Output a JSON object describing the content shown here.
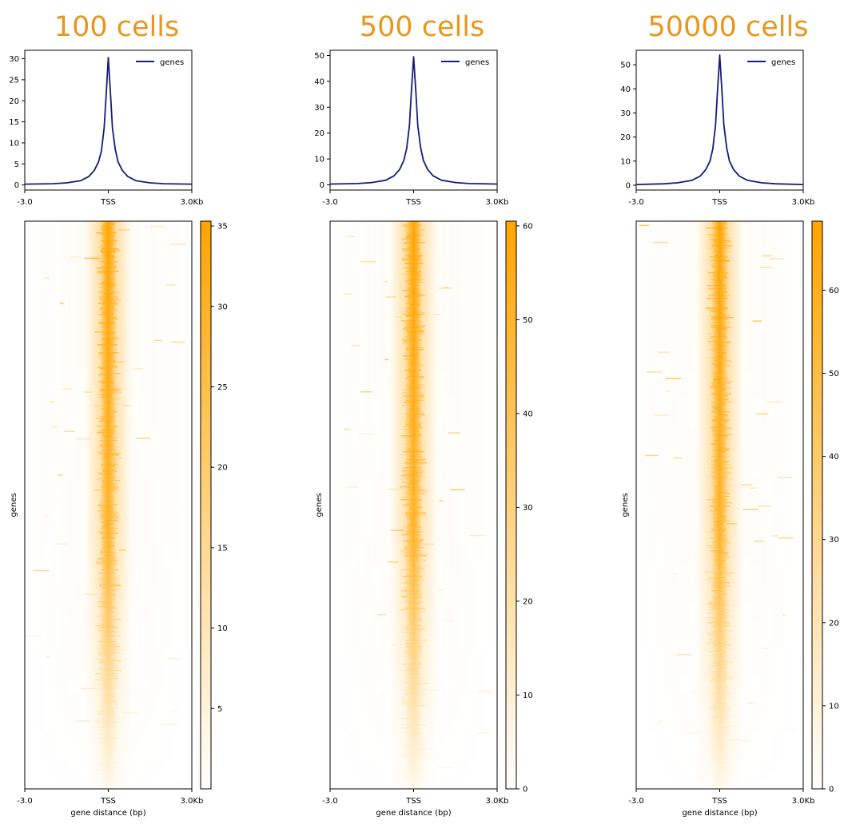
{
  "colors": {
    "accent": "#E8961E",
    "line": "#1a1a7e",
    "heat_high": "#FFA500"
  },
  "chart_data": [
    {
      "type": "line",
      "title": "100 cells",
      "profile": {
        "x_ticks": [
          "-3.0",
          "TSS",
          "3.0Kb"
        ],
        "y_ticks": [
          0,
          5,
          10,
          15,
          20,
          25,
          30
        ],
        "ylim": [
          -1.2,
          32
        ],
        "legend": "genes",
        "legend_position": "top-right",
        "x": [
          -3.0,
          -2.0,
          -1.5,
          -1.0,
          -0.7,
          -0.5,
          -0.35,
          -0.25,
          -0.15,
          -0.08,
          0.0,
          0.08,
          0.15,
          0.25,
          0.35,
          0.5,
          0.7,
          1.0,
          1.5,
          2.0,
          3.0
        ],
        "y": [
          0.2,
          0.3,
          0.5,
          1.0,
          2.0,
          3.5,
          5.5,
          8.0,
          13.5,
          21.0,
          30.3,
          21.5,
          13.5,
          8.5,
          5.5,
          3.5,
          2.0,
          1.0,
          0.5,
          0.3,
          0.2
        ]
      },
      "heatmap": {
        "ylabel": "genes",
        "xlabel": "gene distance (bp)",
        "x_ticks": [
          "-3.0",
          "TSS",
          "3.0Kb"
        ],
        "colorbar_ticks": [
          5,
          10,
          15,
          20,
          25,
          30,
          35
        ],
        "colorbar_range": [
          0,
          35.3
        ]
      }
    },
    {
      "type": "line",
      "title": "500 cells",
      "profile": {
        "x_ticks": [
          "-3.0",
          "TSS",
          "3.0Kb"
        ],
        "y_ticks": [
          0,
          10,
          20,
          30,
          40,
          50
        ],
        "ylim": [
          -2,
          52
        ],
        "legend": "genes",
        "legend_position": "top-right",
        "x": [
          -3.0,
          -2.0,
          -1.5,
          -1.0,
          -0.7,
          -0.5,
          -0.35,
          -0.25,
          -0.15,
          -0.08,
          0.0,
          0.08,
          0.15,
          0.25,
          0.35,
          0.5,
          0.7,
          1.0,
          1.5,
          2.0,
          3.0
        ],
        "y": [
          0.3,
          0.5,
          0.9,
          1.8,
          3.5,
          6.0,
          9.5,
          14.0,
          23.0,
          36.0,
          49.5,
          36.0,
          23.0,
          14.5,
          9.5,
          6.0,
          3.5,
          1.8,
          0.9,
          0.5,
          0.3
        ]
      },
      "heatmap": {
        "ylabel": "genes",
        "xlabel": "gene distance (bp)",
        "x_ticks": [
          "-3.0",
          "TSS",
          "3.0Kb"
        ],
        "colorbar_ticks": [
          0,
          10,
          20,
          30,
          40,
          50,
          60
        ],
        "colorbar_range": [
          0,
          60.5
        ]
      }
    },
    {
      "type": "line",
      "title": "50000 cells",
      "profile": {
        "x_ticks": [
          "-3.0",
          "TSS",
          "3.0Kb"
        ],
        "y_ticks": [
          0,
          10,
          20,
          30,
          40,
          50
        ],
        "ylim": [
          -2,
          56
        ],
        "legend": "genes",
        "legend_position": "top-right",
        "x": [
          -3.0,
          -2.0,
          -1.5,
          -1.0,
          -0.7,
          -0.5,
          -0.35,
          -0.25,
          -0.15,
          -0.08,
          0.0,
          0.08,
          0.15,
          0.25,
          0.35,
          0.5,
          0.7,
          1.0,
          1.5,
          2.0,
          3.0
        ],
        "y": [
          0.3,
          0.6,
          1.0,
          2.0,
          3.8,
          6.5,
          10.0,
          15.0,
          25.0,
          39.0,
          54.0,
          39.0,
          25.0,
          15.5,
          10.0,
          6.5,
          3.8,
          2.0,
          1.0,
          0.6,
          0.3
        ]
      },
      "heatmap": {
        "ylabel": "genes",
        "xlabel": "gene distance (bp)",
        "x_ticks": [
          "-3.0",
          "TSS",
          "3.0Kb"
        ],
        "colorbar_ticks": [
          0,
          10,
          20,
          30,
          40,
          50,
          60
        ],
        "colorbar_range": [
          0,
          68.3
        ]
      }
    }
  ]
}
